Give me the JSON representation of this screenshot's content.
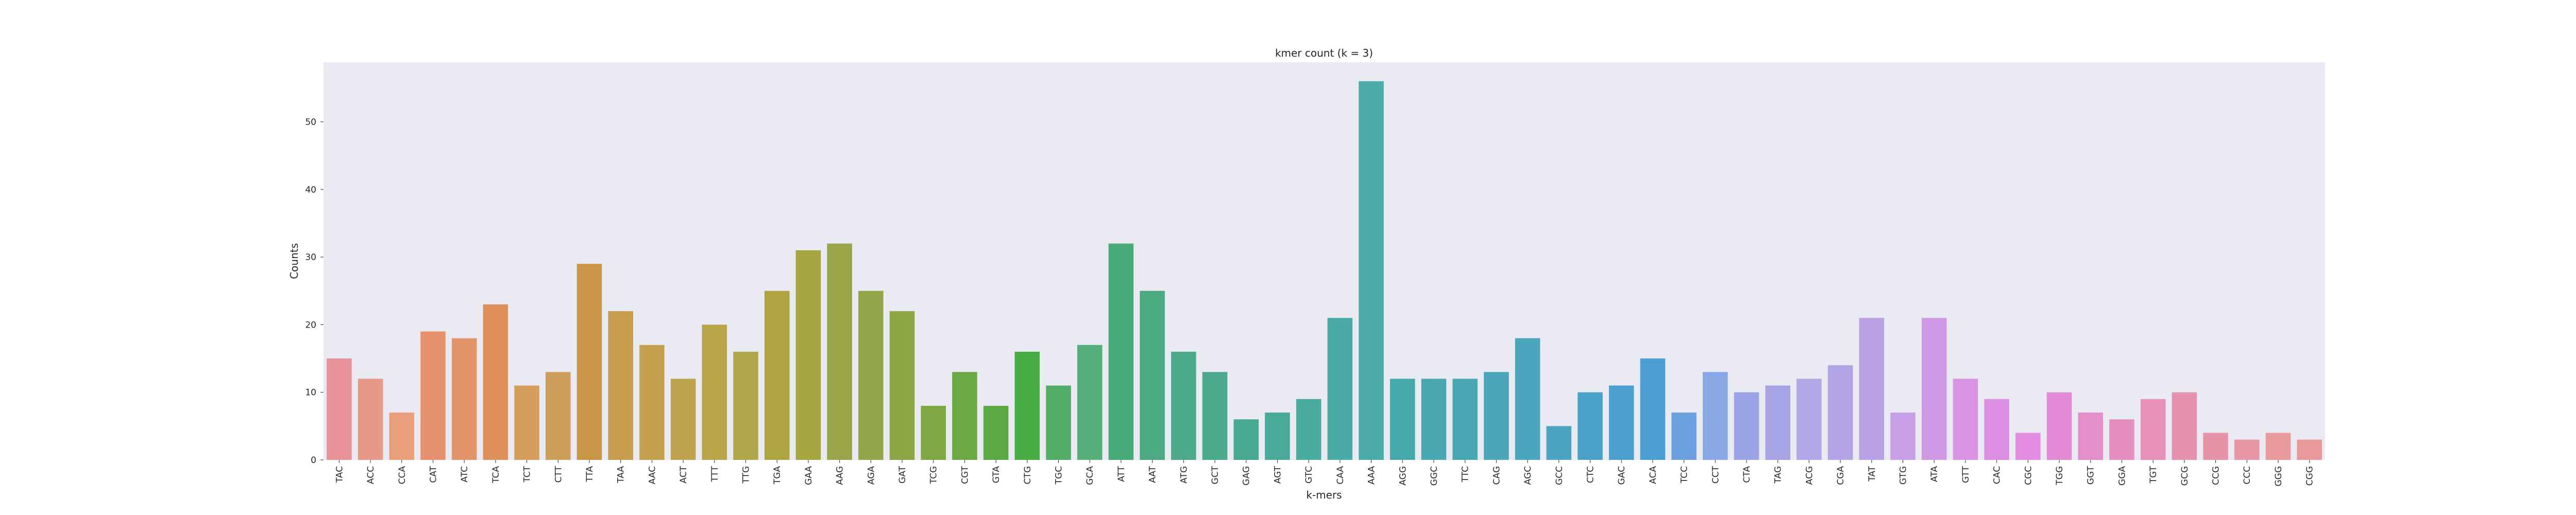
{
  "chart_data": {
    "type": "bar",
    "title": "kmer count (k = 3)",
    "xlabel": "k-mers",
    "ylabel": "Counts",
    "ylim": [
      0,
      58.8
    ],
    "yticks": [
      0,
      10,
      20,
      30,
      40,
      50
    ],
    "grid": false,
    "categories": [
      "TAC",
      "ACC",
      "CCA",
      "CAT",
      "ATC",
      "TCA",
      "TCT",
      "CTT",
      "TTA",
      "TAA",
      "AAC",
      "ACT",
      "TTT",
      "TTG",
      "TGA",
      "GAA",
      "AAG",
      "AGA",
      "GAT",
      "TCG",
      "CGT",
      "GTA",
      "CTG",
      "TGC",
      "GCA",
      "ATT",
      "AAT",
      "ATG",
      "GCT",
      "GAG",
      "AGT",
      "GTC",
      "CAA",
      "AAA",
      "AGG",
      "GGC",
      "TTC",
      "CAG",
      "AGC",
      "GCC",
      "CTC",
      "GAC",
      "ACA",
      "TCC",
      "CCT",
      "CTA",
      "TAG",
      "ACG",
      "CGA",
      "TAT",
      "GTG",
      "ATA",
      "GTT",
      "CAC",
      "CGC",
      "TGG",
      "GGT",
      "GGA",
      "TGT",
      "GCG",
      "CCG",
      "CCC",
      "GGG",
      "CGG"
    ],
    "values": [
      15,
      12,
      7,
      19,
      18,
      23,
      11,
      13,
      29,
      22,
      17,
      12,
      20,
      16,
      25,
      31,
      32,
      25,
      22,
      8,
      13,
      8,
      16,
      11,
      17,
      32,
      25,
      16,
      13,
      6,
      7,
      9,
      21,
      56,
      12,
      12,
      12,
      13,
      18,
      5,
      10,
      11,
      15,
      7,
      13,
      10,
      11,
      12,
      14,
      21,
      7,
      21,
      12,
      9,
      4,
      10,
      7,
      6,
      9,
      10,
      4,
      3,
      4,
      3
    ],
    "colors": [
      "#e8939a",
      "#e89985",
      "#e9a07a",
      "#e8916e",
      "#e3956a",
      "#df8f5a",
      "#d59f5b",
      "#cd9d5a",
      "#c99648",
      "#c89c4d",
      "#c4a14e",
      "#bfa24e",
      "#b9a549",
      "#b2a64a",
      "#aea441",
      "#a5a63f",
      "#9aa54a",
      "#94a64a",
      "#8da747",
      "#7fa744",
      "#6aa944",
      "#5aa943",
      "#47ae44",
      "#52ae67",
      "#56ae7b",
      "#4aab7a",
      "#4baa82",
      "#4caa89",
      "#4ba98c",
      "#48a993",
      "#49aa99",
      "#4aab9f",
      "#4aaba6",
      "#4aaba9",
      "#48a9ac",
      "#4aa8b1",
      "#49a7b4",
      "#4aa6b8",
      "#4aa6bc",
      "#4ba4c2",
      "#4ba2c8",
      "#4ca0cf",
      "#4b9fd4",
      "#6aa0e0",
      "#8aa8e6",
      "#9aa4e6",
      "#a6a4e5",
      "#b0a6e8",
      "#b3a3e7",
      "#baa1e5",
      "#c79fe4",
      "#cf98e4",
      "#d994e4",
      "#dc8ee3",
      "#e38ce1",
      "#e48bd7",
      "#e48fc9",
      "#e58fc0",
      "#e591b9",
      "#e591b0",
      "#e693a8",
      "#e896a3",
      "#e89a9d",
      "#e8999a"
    ]
  }
}
